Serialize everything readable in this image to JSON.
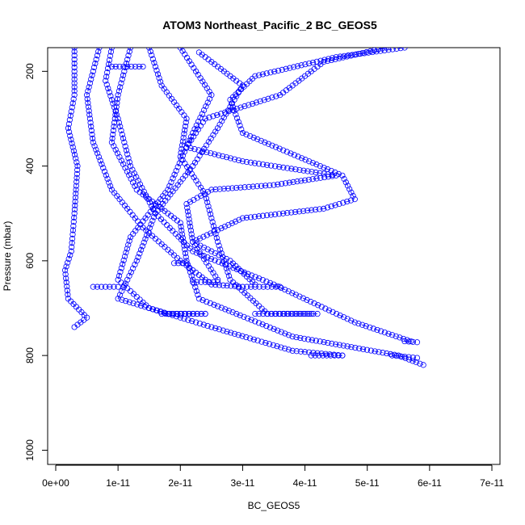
{
  "chart_data": {
    "type": "scatter",
    "title": "ATOM3 Northeast_Pacific_2 BC_GEOS5",
    "xlabel": "BC_GEOS5",
    "ylabel": "Pressure (mbar)",
    "xlim": [
      0,
      7e-11
    ],
    "ylim": [
      150,
      1030
    ],
    "y_reversed": true,
    "x_ticks": [
      0,
      1e-11,
      2e-11,
      3e-11,
      4e-11,
      5e-11,
      6e-11,
      7e-11
    ],
    "x_tick_labels": [
      "0e+00",
      "1e-11",
      "2e-11",
      "3e-11",
      "4e-11",
      "5e-11",
      "6e-11",
      "7e-11"
    ],
    "y_ticks": [
      200,
      400,
      600,
      800,
      1000
    ],
    "y_tick_labels": [
      "200",
      "400",
      "600",
      "800",
      "1000"
    ],
    "marker": "open-circle",
    "line_style": "dash-dot",
    "color": "#0000ff",
    "series": [
      {
        "values": [
          [
            3e-12,
            150
          ],
          [
            3e-12,
            250
          ],
          [
            2e-12,
            320
          ],
          [
            3.5e-12,
            400
          ],
          [
            3e-12,
            500
          ],
          [
            2.5e-12,
            580
          ],
          [
            1.5e-12,
            620
          ],
          [
            2e-12,
            680
          ],
          [
            5e-12,
            720
          ],
          [
            3e-12,
            740
          ]
        ]
      },
      {
        "values": [
          [
            7e-12,
            150
          ],
          [
            5e-12,
            250
          ],
          [
            6e-12,
            350
          ],
          [
            9e-12,
            450
          ],
          [
            1.4e-11,
            530
          ],
          [
            2e-11,
            600
          ],
          [
            2.5e-11,
            650
          ],
          [
            3e-11,
            655
          ],
          [
            3.6e-11,
            655
          ]
        ]
      },
      {
        "values": [
          [
            9e-12,
            150
          ],
          [
            8e-12,
            220
          ],
          [
            1e-11,
            300
          ],
          [
            1.2e-11,
            400
          ],
          [
            1.6e-11,
            500
          ],
          [
            2.2e-11,
            580
          ],
          [
            3.5e-11,
            650
          ],
          [
            4.8e-11,
            730
          ],
          [
            5.7e-11,
            770
          ]
        ]
      },
      {
        "values": [
          [
            1.2e-11,
            150
          ],
          [
            1e-11,
            250
          ],
          [
            9e-12,
            350
          ],
          [
            1.3e-11,
            450
          ],
          [
            2e-11,
            520
          ],
          [
            2.1e-11,
            600
          ],
          [
            2.3e-11,
            680
          ],
          [
            3.8e-11,
            760
          ],
          [
            5.5e-11,
            800
          ],
          [
            5.9e-11,
            820
          ]
        ]
      },
      {
        "values": [
          [
            1.5e-11,
            150
          ],
          [
            1.7e-11,
            230
          ],
          [
            2.1e-11,
            300
          ],
          [
            2e-11,
            380
          ],
          [
            2.4e-11,
            460
          ],
          [
            2.6e-11,
            560
          ],
          [
            2.8e-11,
            640
          ],
          [
            3.4e-11,
            712
          ],
          [
            4.2e-11,
            712
          ]
        ]
      },
      {
        "values": [
          [
            2e-11,
            150
          ],
          [
            2.5e-11,
            250
          ],
          [
            2.2e-11,
            330
          ],
          [
            1.8e-11,
            450
          ],
          [
            1.2e-11,
            550
          ],
          [
            1e-11,
            640
          ],
          [
            1.5e-11,
            700
          ],
          [
            2.5e-11,
            740
          ],
          [
            3.8e-11,
            790
          ],
          [
            4.6e-11,
            800
          ]
        ]
      },
      {
        "values": [
          [
            2.3e-11,
            160
          ],
          [
            3e-11,
            230
          ],
          [
            2.6e-11,
            320
          ],
          [
            2.2e-11,
            400
          ],
          [
            1.6e-11,
            500
          ],
          [
            1.3e-11,
            600
          ],
          [
            1e-11,
            680
          ],
          [
            1.8e-11,
            712
          ],
          [
            2.4e-11,
            712
          ]
        ]
      },
      {
        "values": [
          [
            5.6e-11,
            150
          ],
          [
            4.5e-11,
            170
          ],
          [
            3.2e-11,
            210
          ],
          [
            2.8e-11,
            260
          ],
          [
            3e-11,
            330
          ],
          [
            4.6e-11,
            420
          ],
          [
            4.8e-11,
            470
          ],
          [
            4.3e-11,
            490
          ],
          [
            3e-11,
            510
          ],
          [
            2.2e-11,
            560
          ],
          [
            2.8e-11,
            600
          ],
          [
            3.2e-11,
            650
          ]
        ]
      },
      {
        "values": [
          [
            5.3e-11,
            150
          ],
          [
            4.3e-11,
            180
          ],
          [
            3.6e-11,
            250
          ],
          [
            2.4e-11,
            300
          ],
          [
            2.1e-11,
            360
          ],
          [
            3e-11,
            390
          ],
          [
            4.5e-11,
            420
          ],
          [
            3.5e-11,
            440
          ],
          [
            2.5e-11,
            450
          ],
          [
            2.1e-11,
            480
          ],
          [
            2.2e-11,
            560
          ],
          [
            2.6e-11,
            640
          ]
        ]
      },
      {
        "values": [
          [
            9e-12,
            190
          ],
          [
            1.4e-11,
            190
          ]
        ]
      },
      {
        "values": [
          [
            6e-12,
            655
          ],
          [
            1e-11,
            655
          ]
        ]
      },
      {
        "values": [
          [
            1.7e-11,
            712
          ],
          [
            2.4e-11,
            712
          ]
        ]
      },
      {
        "values": [
          [
            1.9e-11,
            605
          ],
          [
            2.1e-11,
            605
          ]
        ]
      },
      {
        "values": [
          [
            2.2e-11,
            645
          ],
          [
            2.6e-11,
            645
          ]
        ]
      },
      {
        "values": [
          [
            3.2e-11,
            712
          ],
          [
            4.1e-11,
            712
          ]
        ]
      },
      {
        "values": [
          [
            4.1e-11,
            800
          ],
          [
            4.6e-11,
            800
          ]
        ]
      },
      {
        "values": [
          [
            5.4e-11,
            800
          ],
          [
            5.8e-11,
            805
          ]
        ]
      },
      {
        "values": [
          [
            5.6e-11,
            770
          ],
          [
            5.8e-11,
            772
          ]
        ]
      }
    ]
  }
}
